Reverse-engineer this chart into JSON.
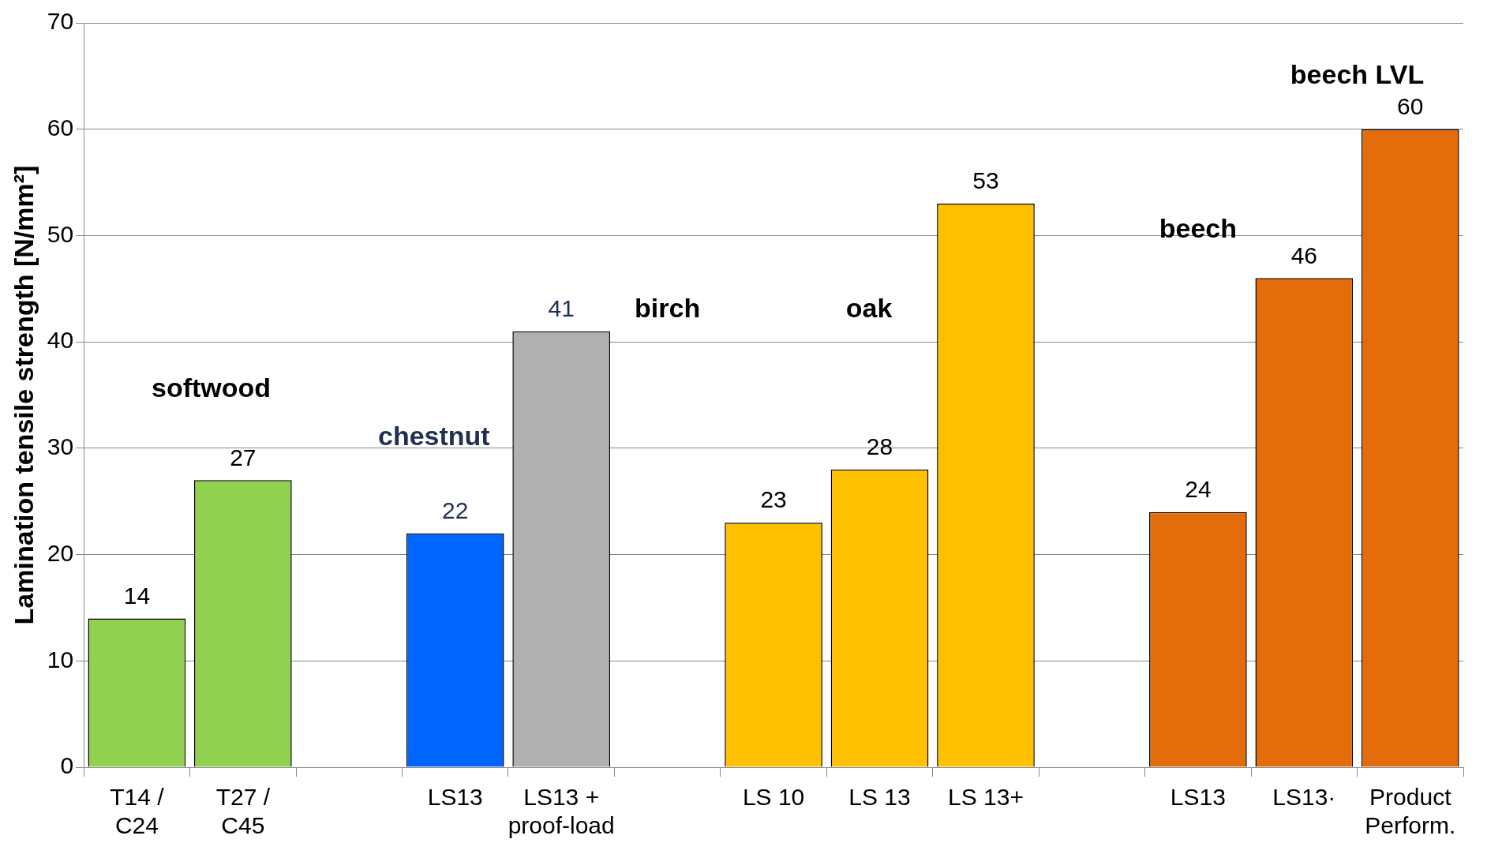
{
  "chart_data": {
    "type": "bar",
    "ylabel": "Lamination tensile strength [N/mm²]",
    "categories": [
      "T14 / C24",
      "T27 / C45",
      null,
      "LS13",
      "LS13 + proof-load",
      null,
      "LS 10",
      "LS 13",
      "LS 13+",
      null,
      "LS13",
      "LS13·",
      "Product Perform."
    ],
    "values": [
      14,
      27,
      null,
      22,
      41,
      null,
      23,
      28,
      53,
      null,
      24,
      46,
      60
    ],
    "colors": [
      "#92d050",
      "#92d050",
      "#ffffff",
      "#0066ff",
      "#b0b0b0",
      "#ffffff",
      "#ffc000",
      "#ffc000",
      "#ffc000",
      "#ffffff",
      "#e46c0a",
      "#e46c0a",
      "#e46c0a"
    ],
    "ylim": [
      0,
      70
    ],
    "yticks": [
      0,
      10,
      20,
      30,
      40,
      50,
      60,
      70
    ],
    "grid": "y",
    "data_labels": true,
    "legend": false,
    "annotations": [
      "softwood",
      "chestnut",
      "birch",
      "oak",
      "beech",
      "beech LVL"
    ]
  }
}
